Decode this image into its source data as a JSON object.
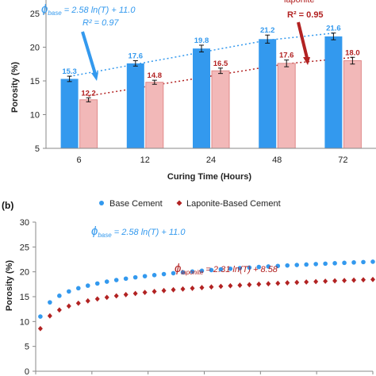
{
  "colors": {
    "base": "#3399ee",
    "laponite": "#b22222",
    "laponite_fill": "#f2b8b8",
    "axis": "#888888"
  },
  "chart_data": [
    {
      "type": "bar",
      "categories": [
        "6",
        "12",
        "24",
        "48",
        "72"
      ],
      "series": [
        {
          "values": [
            15.3,
            17.6,
            19.8,
            21.2,
            21.6
          ],
          "labels": [
            "15.3",
            "17.6",
            "19.8",
            "21.2",
            "21.6"
          ],
          "errors": [
            0.4,
            0.4,
            0.5,
            0.6,
            0.5
          ]
        },
        {
          "values": [
            12.2,
            14.8,
            16.5,
            17.6,
            18.0
          ],
          "labels": [
            "12.2",
            "14.8",
            "16.5",
            "17.6",
            "18.0"
          ],
          "errors": [
            0.3,
            0.3,
            0.4,
            0.5,
            0.5
          ]
        }
      ],
      "xlabel": "Curing Time (Hours)",
      "ylabel": "Porosity (%)",
      "ylim": [
        5,
        27
      ],
      "yticks": [
        "5",
        "10",
        "15",
        "20",
        "25"
      ],
      "trendlines": "dotted logarithmic fit per series",
      "annotations": {
        "base_eq_sym": "ϕ",
        "base_eq_sub": "base",
        "base_eq_rhs": " = 2.58 ln(T) + 11.0",
        "base_r2": "R² = 0.97",
        "lap_eq_sub": "laponite",
        "lap_r2": "R² = 0.95"
      }
    },
    {
      "type": "scatter",
      "panel_label": "(b)",
      "legend_position": "top",
      "series": [
        {
          "name": "Base Cement",
          "a": 2.58,
          "b": 11.0,
          "t_start": 1,
          "t_end": 72,
          "points": 36
        },
        {
          "name": "Laponite-Based Cement",
          "a": 2.31,
          "b": 8.58,
          "t_start": 1,
          "t_end": 72,
          "points": 36
        }
      ],
      "ylabel": "Porosity (%)",
      "ylim": [
        0,
        30
      ],
      "yticks": [
        "0",
        "5",
        "10",
        "15",
        "20",
        "25",
        "30"
      ],
      "xlim": [
        0,
        72
      ],
      "annotations": {
        "base_eq_sym": "ϕ",
        "base_eq_sub": "base",
        "base_eq_rhs": " = 2.58 ln(T) + 11.0",
        "lap_eq_sym": "ϕ",
        "lap_eq_sub": "laponite",
        "lap_eq_rhs": " = 2.31 ln(T) + 8.58"
      }
    }
  ]
}
